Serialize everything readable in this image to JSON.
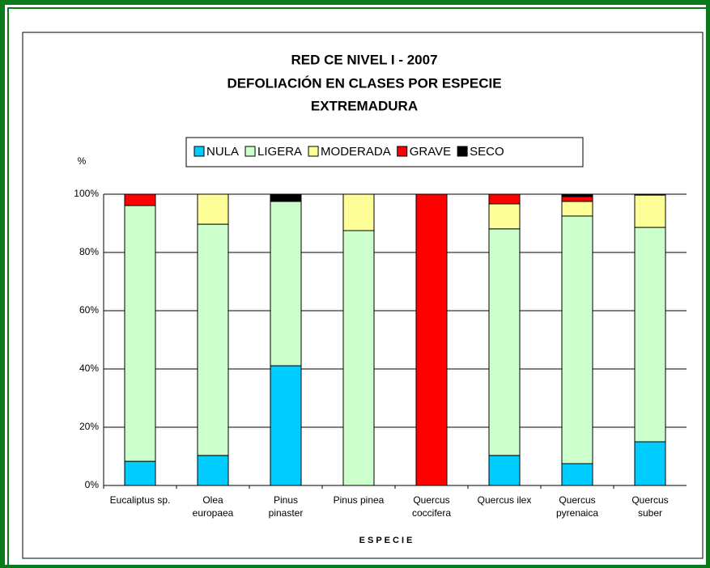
{
  "chart_data": {
    "type": "stacked_bar",
    "title": [
      "RED CE NIVEL I - 2007",
      "DEFOLIACIÓN EN CLASES POR ESPECIE",
      "EXTREMADURA"
    ],
    "y_label": "%",
    "x_label": "ESPECIE",
    "categories": [
      "Eucaliptus sp.",
      "Olea europaea",
      "Pinus pinaster",
      "Pinus pinea",
      "Quercus coccifera",
      "Quercus ilex",
      "Quercus pyrenaica",
      "Quercus suber"
    ],
    "series": [
      {
        "name": "NULA",
        "color": "#00ccff",
        "values": [
          8.3,
          10.3,
          41.1,
          0,
          0,
          10.3,
          7.5,
          15
        ]
      },
      {
        "name": "LIGERA",
        "color": "#ccffcc",
        "values": [
          87.8,
          79.4,
          56.4,
          87.5,
          0,
          77.8,
          85,
          73.6
        ]
      },
      {
        "name": "MODERADA",
        "color": "#ffff99",
        "values": [
          0,
          10.3,
          0,
          12.5,
          0,
          8.6,
          5,
          11.1
        ]
      },
      {
        "name": "GRAVE",
        "color": "#ff0000",
        "values": [
          3.9,
          0,
          0,
          0,
          100,
          3.3,
          1.7,
          0
        ]
      },
      {
        "name": "SECO",
        "color": "#000000",
        "values": [
          0,
          0,
          2.5,
          0,
          0,
          0,
          0.8,
          0.3
        ]
      }
    ],
    "ylim": [
      0,
      100
    ],
    "yticks": [
      {
        "value": 0,
        "label": "0%"
      },
      {
        "value": 20,
        "label": "20%"
      },
      {
        "value": 40,
        "label": "40%"
      },
      {
        "value": 60,
        "label": "60%"
      },
      {
        "value": 80,
        "label": "80%"
      },
      {
        "value": 100,
        "label": "100%"
      }
    ],
    "grid": true,
    "legend": "top"
  }
}
